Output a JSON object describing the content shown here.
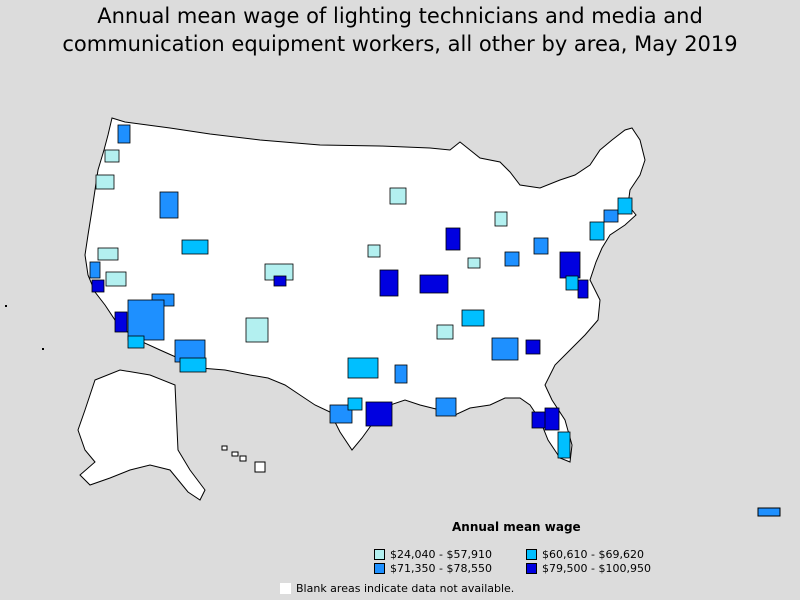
{
  "title": "Annual mean wage of lighting technicians and media and\ncommunication equipment workers, all other by area, May 2019",
  "colors": {
    "background": "#dcdcdc",
    "blank": "#ffffff",
    "border": "#000000",
    "tier1": "#b3f0f0",
    "tier2": "#00bfff",
    "tier3": "#1e90ff",
    "tier4": "#0000e0"
  },
  "legend": {
    "title": "Annual mean wage",
    "items": [
      {
        "label": "$24,040 - $57,910",
        "color": "#b3f0f0"
      },
      {
        "label": "$60,610 - $69,620",
        "color": "#00bfff"
      },
      {
        "label": "$71,350 - $78,550",
        "color": "#1e90ff"
      },
      {
        "label": "$79,500 - $100,950",
        "color": "#0000e0"
      }
    ]
  },
  "note": "Blank areas indicate data not available."
}
